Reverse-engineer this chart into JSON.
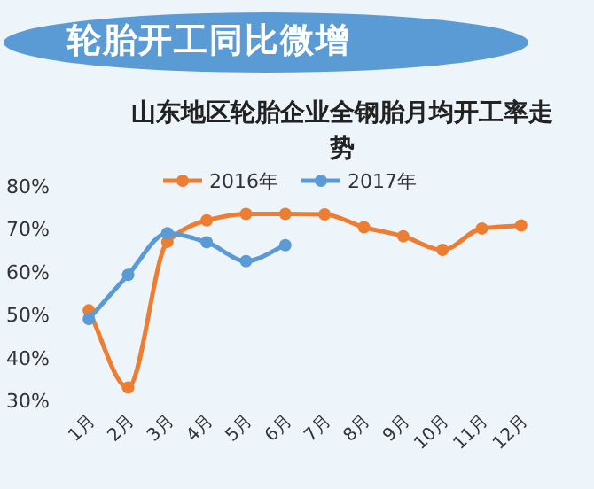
{
  "chart_data": {
    "type": "line",
    "title": "轮胎开工同比微增",
    "subtitle": "山东地区轮胎企业全钢胎月均开工率走势",
    "categories": [
      "1月",
      "2月",
      "3月",
      "4月",
      "5月",
      "6月",
      "7月",
      "8月",
      "9月",
      "10月",
      "11月",
      "12月"
    ],
    "series": [
      {
        "name": "2016年",
        "color": "#ed7d31",
        "values": [
          51,
          33,
          67,
          72,
          73.5,
          73.5,
          73.4,
          70.4,
          68.3,
          65.1,
          70.1,
          70.8
        ]
      },
      {
        "name": "2017年",
        "color": "#5b9bd5",
        "values": [
          49,
          59.3,
          69,
          66.9,
          62.5,
          66.2,
          null,
          null,
          null,
          null,
          null,
          null
        ]
      }
    ],
    "ylim": [
      30,
      80
    ],
    "yticks": [
      {
        "value": 30,
        "label": "30%"
      },
      {
        "value": 40,
        "label": "40%"
      },
      {
        "value": 50,
        "label": "50%"
      },
      {
        "value": 60,
        "label": "60%"
      },
      {
        "value": 70,
        "label": "70%"
      },
      {
        "value": 80,
        "label": "80%"
      }
    ],
    "grid": false,
    "legend": "top",
    "marker": "circle",
    "line_style": "solid"
  }
}
